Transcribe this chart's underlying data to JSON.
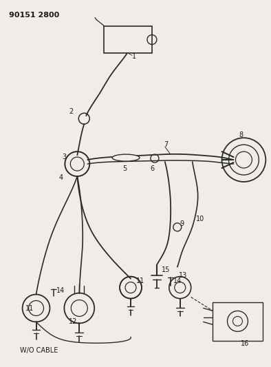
{
  "title": "90151 2800",
  "subtitle": "W/O CABLE",
  "bg": "#f0ede8",
  "lc": "#2a2a2a",
  "tc": "#1a1a1a",
  "figsize": [
    3.94,
    5.33
  ],
  "dpi": 100
}
